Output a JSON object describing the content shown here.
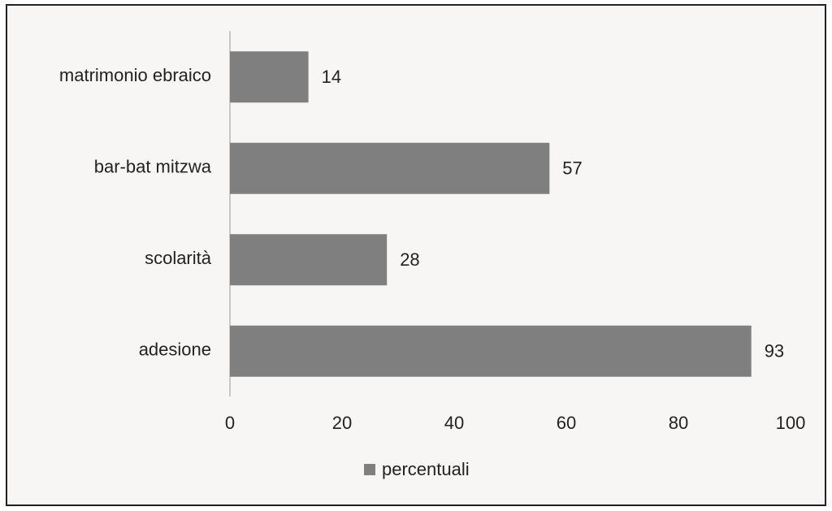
{
  "chart_data": {
    "type": "bar",
    "orientation": "horizontal",
    "categories": [
      "matrimonio ebraico",
      "bar-bat mitzwa",
      "scolarità",
      "adesione"
    ],
    "series": [
      {
        "name": "percentuali",
        "color": "#7f7f7f",
        "values": [
          14,
          57,
          28,
          93
        ]
      }
    ],
    "xlim": [
      0,
      100
    ],
    "xticks": [
      0,
      20,
      40,
      60,
      80,
      100
    ],
    "grid": false,
    "legend": "bottom"
  }
}
